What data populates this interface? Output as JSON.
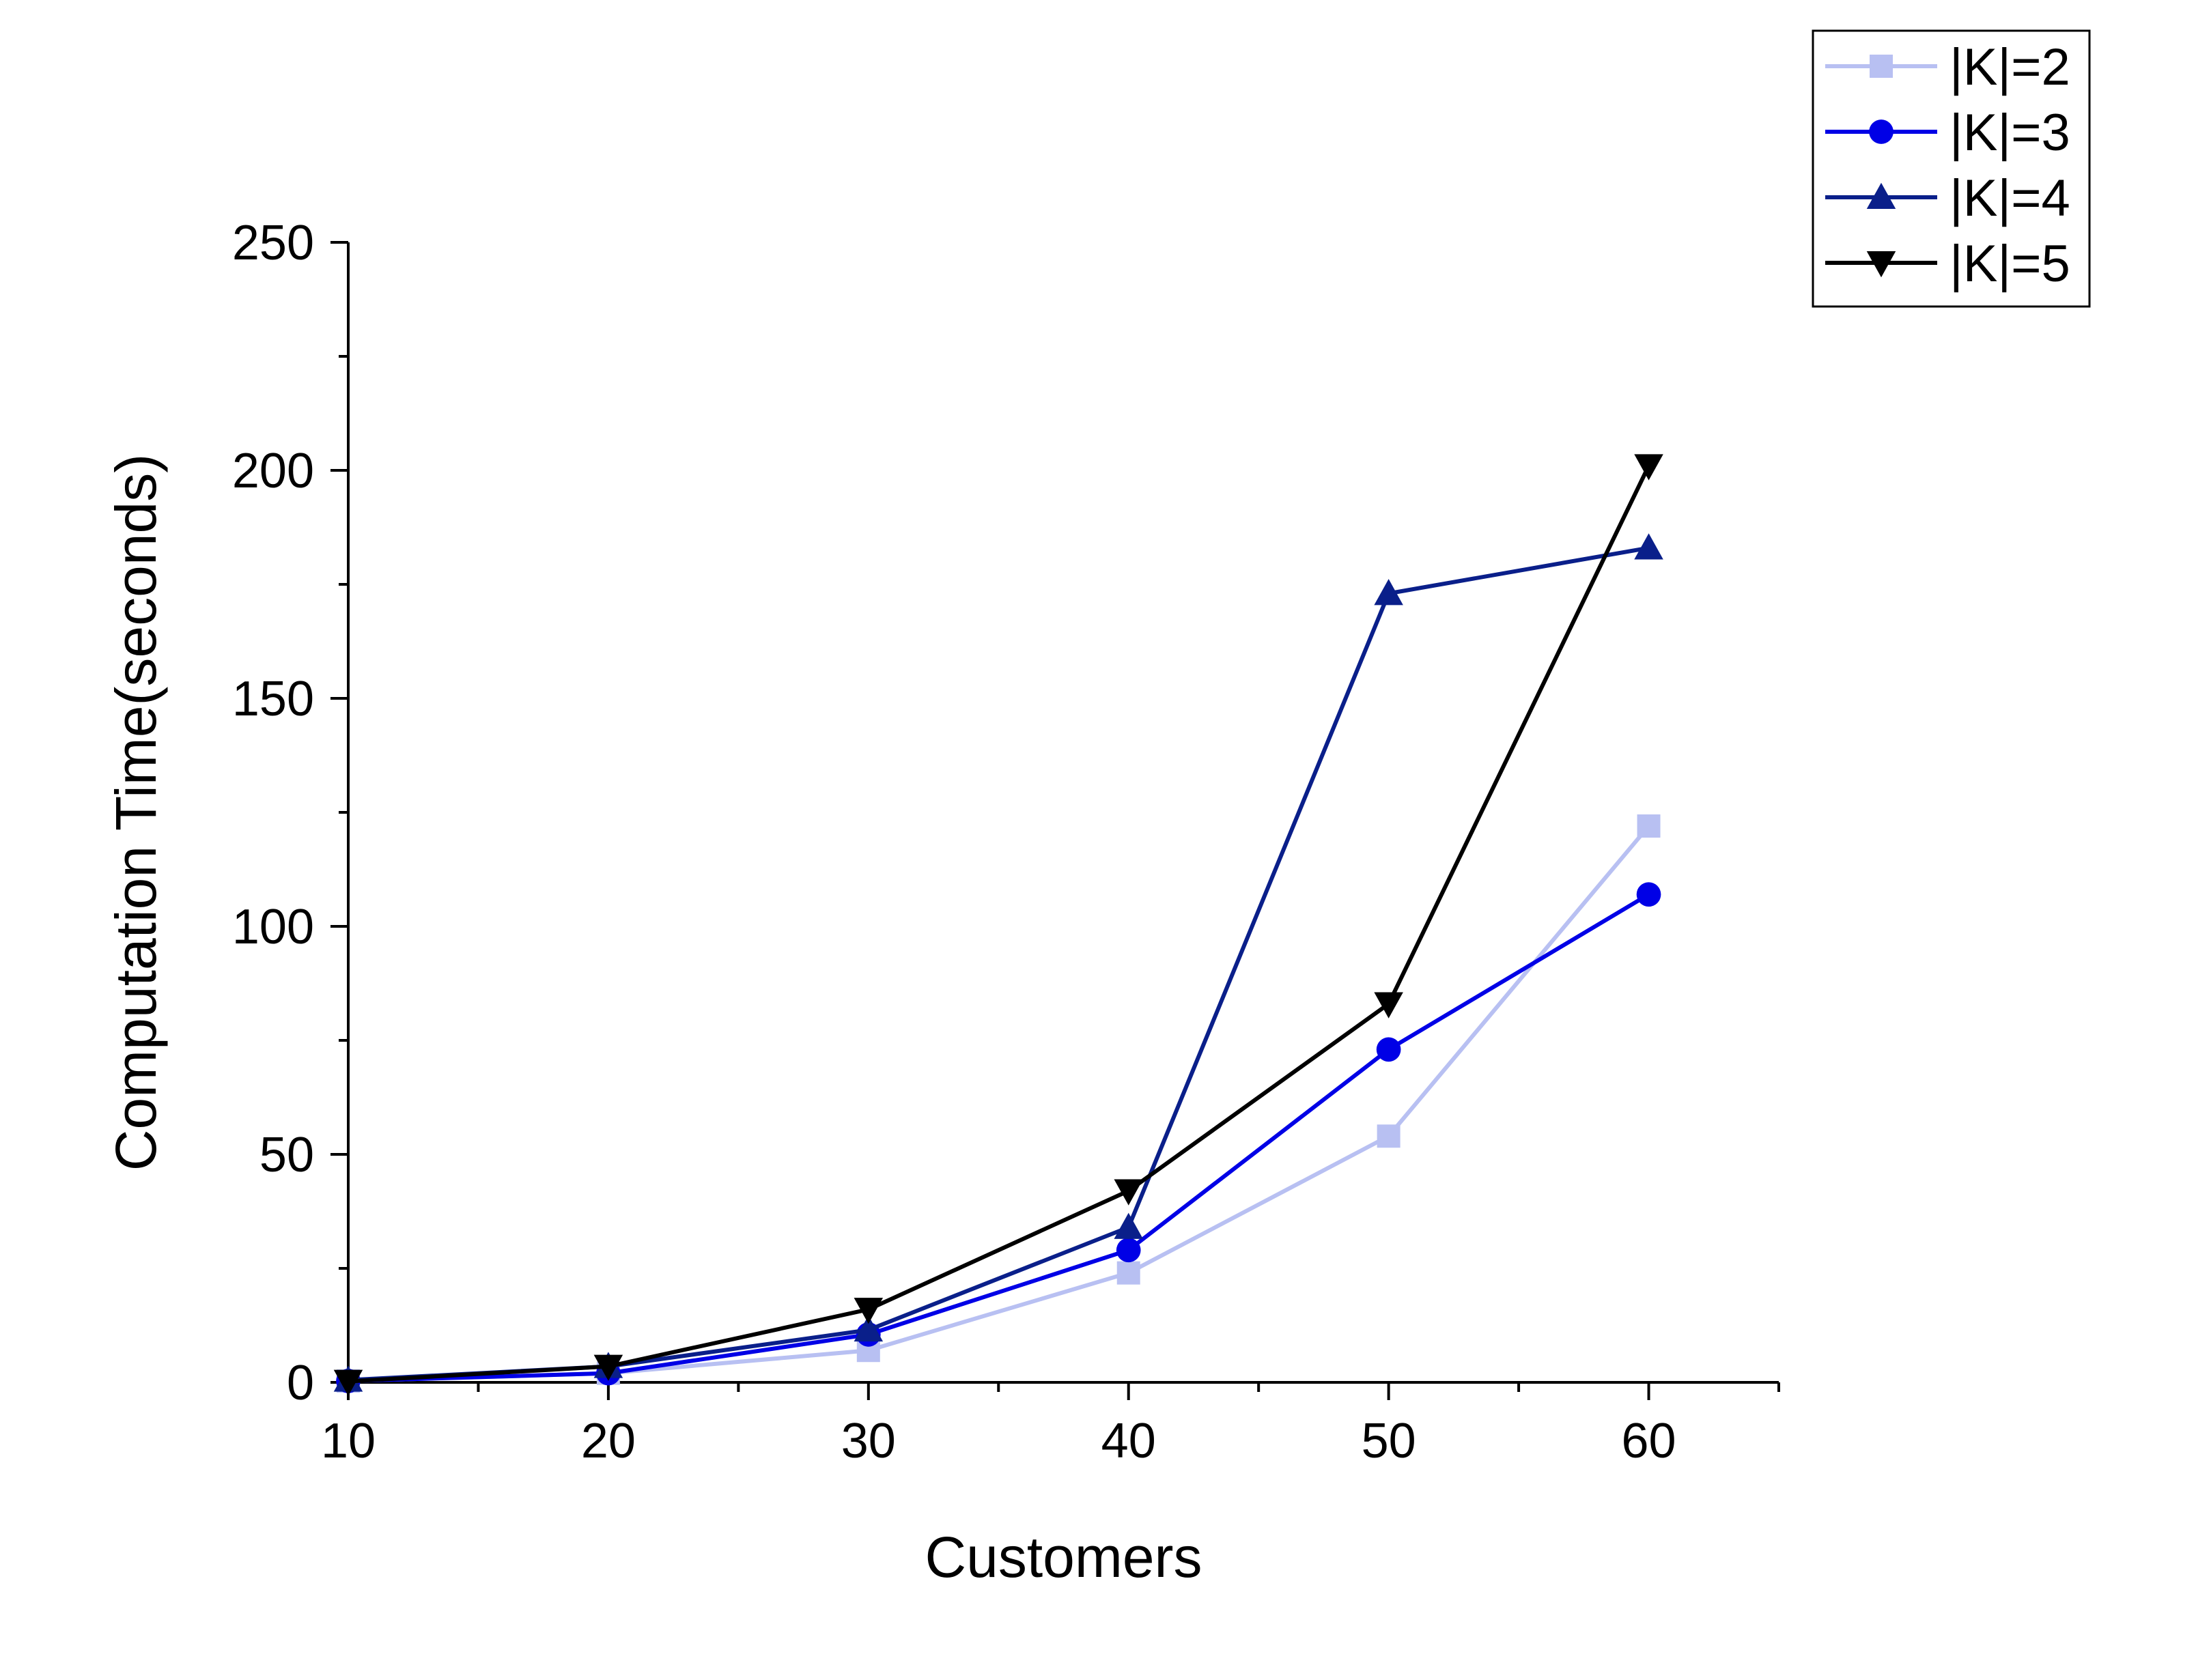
{
  "chart_data": {
    "type": "line",
    "title": "",
    "xlabel": "Customers",
    "ylabel": "Computation Time(seconds)",
    "xlim": [
      10,
      65
    ],
    "ylim": [
      0,
      250
    ],
    "x_ticks": [
      10,
      20,
      30,
      40,
      50,
      60
    ],
    "y_ticks": [
      0,
      50,
      100,
      150,
      200,
      250
    ],
    "x_tick_labels": [
      "10",
      "20",
      "30",
      "40",
      "50",
      "60"
    ],
    "y_tick_labels": [
      "0",
      "50",
      "100",
      "150",
      "200",
      "250"
    ],
    "grid": false,
    "legend_position": "top-right",
    "x": [
      10,
      20,
      30,
      40,
      50,
      60
    ],
    "series": [
      {
        "name": "|K|=2",
        "color": "#b8c0f2",
        "marker": "square",
        "values": [
          0.3,
          2,
          7,
          24,
          54,
          122
        ]
      },
      {
        "name": "|K|=3",
        "color": "#0000e6",
        "marker": "circle",
        "values": [
          0.3,
          2,
          10.5,
          29,
          73,
          107
        ]
      },
      {
        "name": "|K|=4",
        "color": "#0a1f8a",
        "marker": "triangle-up",
        "values": [
          0.5,
          3.5,
          11.5,
          34,
          173,
          183
        ]
      },
      {
        "name": "|K|=5",
        "color": "#000000",
        "marker": "triangle-down",
        "values": [
          0.2,
          3.5,
          16,
          42,
          83,
          201
        ]
      }
    ]
  }
}
